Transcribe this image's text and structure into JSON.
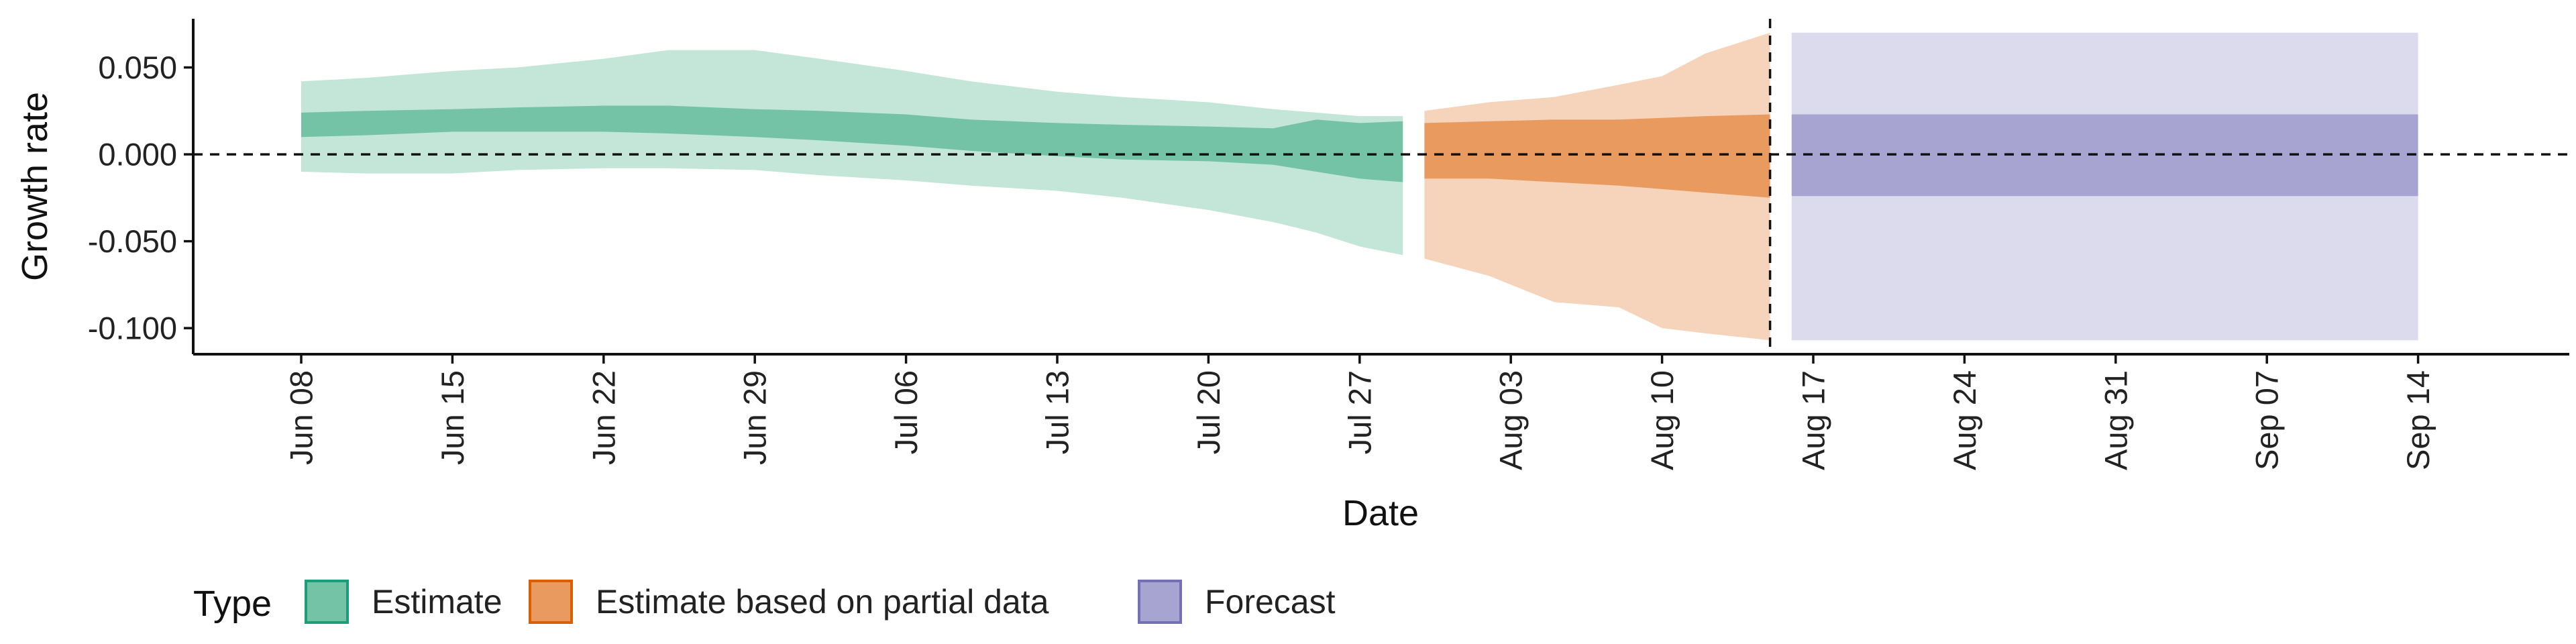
{
  "chart_data": {
    "type": "area",
    "xlabel": "Date",
    "ylabel": "Growth rate",
    "x_tick_labels": [
      "Jun 08",
      "Jun 15",
      "Jun 22",
      "Jun 29",
      "Jul 06",
      "Jul 13",
      "Jul 20",
      "Jul 27",
      "Aug 03",
      "Aug 10",
      "Aug 17",
      "Aug 24",
      "Aug 31",
      "Sep 07",
      "Sep 14"
    ],
    "x_tick_dates": [
      "2020-06-08",
      "2020-06-15",
      "2020-06-22",
      "2020-06-29",
      "2020-07-06",
      "2020-07-13",
      "2020-07-20",
      "2020-07-27",
      "2020-08-03",
      "2020-08-10",
      "2020-08-17",
      "2020-08-24",
      "2020-08-31",
      "2020-09-07",
      "2020-09-14"
    ],
    "y_tick_labels": [
      "0.050",
      "0.000",
      "-0.050",
      "-0.100"
    ],
    "y_ticks": [
      0.05,
      0.0,
      -0.05,
      -0.1
    ],
    "xlim": [
      "2020-06-03",
      "2020-09-21"
    ],
    "ylim": [
      -0.115,
      0.078
    ],
    "reference_lines": {
      "horizontal_y": 0.0,
      "vertical_date": "2020-08-15"
    },
    "legend": {
      "title": "Type",
      "position": "bottom-left",
      "items": [
        {
          "label": "Estimate",
          "fill": "#74c3a6",
          "border": "#1b9e77"
        },
        {
          "label": "Estimate based on partial data",
          "fill": "#e99a5f",
          "border": "#d95f02"
        },
        {
          "label": "Forecast",
          "fill": "#a8a4d1",
          "border": "#7570b3"
        }
      ]
    },
    "series": [
      {
        "name": "Estimate",
        "color_inner": "#74c3a6",
        "color_outer": "#c4e6d9",
        "x": [
          "2020-06-08",
          "2020-06-11",
          "2020-06-15",
          "2020-06-18",
          "2020-06-22",
          "2020-06-25",
          "2020-06-29",
          "2020-07-02",
          "2020-07-06",
          "2020-07-09",
          "2020-07-13",
          "2020-07-16",
          "2020-07-20",
          "2020-07-23",
          "2020-07-25",
          "2020-07-27",
          "2020-07-29"
        ],
        "outer_upper": [
          0.042,
          0.044,
          0.048,
          0.05,
          0.055,
          0.06,
          0.06,
          0.055,
          0.048,
          0.042,
          0.036,
          0.033,
          0.03,
          0.026,
          0.024,
          0.022,
          0.022
        ],
        "inner_upper": [
          0.024,
          0.025,
          0.026,
          0.027,
          0.028,
          0.028,
          0.026,
          0.025,
          0.023,
          0.02,
          0.018,
          0.017,
          0.016,
          0.015,
          0.02,
          0.018,
          0.019
        ],
        "inner_lower": [
          0.01,
          0.011,
          0.013,
          0.013,
          0.013,
          0.012,
          0.01,
          0.008,
          0.005,
          0.002,
          -0.001,
          -0.003,
          -0.004,
          -0.006,
          -0.01,
          -0.014,
          -0.016
        ],
        "outer_lower": [
          -0.01,
          -0.011,
          -0.011,
          -0.009,
          -0.008,
          -0.008,
          -0.009,
          -0.012,
          -0.015,
          -0.018,
          -0.021,
          -0.025,
          -0.032,
          -0.039,
          -0.045,
          -0.053,
          -0.058
        ]
      },
      {
        "name": "Estimate based on partial data",
        "color_inner": "#e99a5f",
        "color_outer": "#f6d4bb",
        "x": [
          "2020-07-30",
          "2020-08-02",
          "2020-08-05",
          "2020-08-08",
          "2020-08-10",
          "2020-08-12",
          "2020-08-15"
        ],
        "outer_upper": [
          0.025,
          0.03,
          0.033,
          0.04,
          0.045,
          0.058,
          0.07
        ],
        "inner_upper": [
          0.018,
          0.019,
          0.02,
          0.02,
          0.021,
          0.022,
          0.023
        ],
        "inner_lower": [
          -0.014,
          -0.014,
          -0.016,
          -0.018,
          -0.02,
          -0.022,
          -0.025
        ],
        "outer_lower": [
          -0.06,
          -0.07,
          -0.085,
          -0.088,
          -0.1,
          -0.103,
          -0.107
        ]
      },
      {
        "name": "Forecast",
        "color_inner": "#a8a4d1",
        "color_outer": "#dcdbed",
        "x": [
          "2020-08-16",
          "2020-09-14"
        ],
        "outer_upper": [
          0.07,
          0.07
        ],
        "inner_upper": [
          0.023,
          0.023
        ],
        "inner_lower": [
          -0.024,
          -0.024
        ],
        "outer_lower": [
          -0.107,
          -0.107
        ]
      }
    ]
  }
}
